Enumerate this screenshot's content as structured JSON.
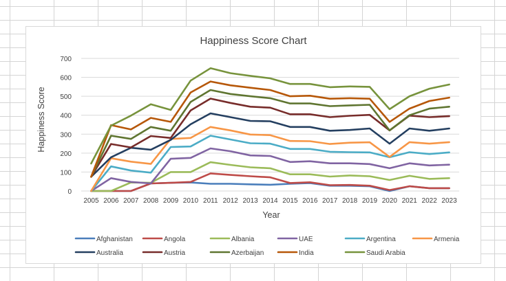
{
  "chart_data": {
    "type": "line",
    "title": "Happiness Score Chart",
    "xlabel": "Year",
    "ylabel": "Happiness Score",
    "ylim": [
      0,
      700
    ],
    "yticks": [
      0,
      100,
      200,
      300,
      400,
      500,
      600,
      700
    ],
    "categories": [
      "2005",
      "2006",
      "2007",
      "2008",
      "2009",
      "2010",
      "2011",
      "2012",
      "2013",
      "2014",
      "2015",
      "2016",
      "2017",
      "2018",
      "2019",
      "2020",
      "2021",
      "2022",
      "2023"
    ],
    "grid": true,
    "legend_position": "bottom",
    "series": [
      {
        "name": "Afghanistan",
        "color": "#4a7ebb",
        "values": [
          0,
          0,
          0,
          40,
          43,
          45,
          38,
          38,
          35,
          33,
          38,
          42,
          28,
          28,
          25,
          0,
          25,
          15,
          15
        ]
      },
      {
        "name": "Angola",
        "color": "#be4b48",
        "values": [
          0,
          0,
          0,
          40,
          43,
          48,
          93,
          85,
          78,
          72,
          42,
          46,
          31,
          32,
          28,
          5,
          25,
          15,
          15
        ]
      },
      {
        "name": "Albania",
        "color": "#9bbb59",
        "values": [
          0,
          0,
          45,
          43,
          100,
          100,
          152,
          138,
          125,
          120,
          88,
          88,
          76,
          82,
          78,
          58,
          80,
          64,
          68
        ]
      },
      {
        "name": "UAE",
        "color": "#8064a2",
        "values": [
          0,
          68,
          48,
          40,
          170,
          175,
          225,
          210,
          188,
          185,
          153,
          157,
          146,
          146,
          142,
          120,
          146,
          135,
          139
        ]
      },
      {
        "name": "Argentina",
        "color": "#4bacc6",
        "values": [
          0,
          130,
          108,
          97,
          232,
          235,
          292,
          272,
          252,
          250,
          222,
          222,
          207,
          205,
          204,
          178,
          205,
          195,
          204
        ]
      },
      {
        "name": "Armenia",
        "color": "#f79646",
        "values": [
          0,
          173,
          155,
          143,
          275,
          280,
          338,
          320,
          298,
          295,
          264,
          263,
          248,
          255,
          257,
          180,
          258,
          250,
          258
        ]
      },
      {
        "name": "Australia",
        "color": "#243f60",
        "values": [
          75,
          178,
          228,
          218,
          270,
          352,
          410,
          390,
          370,
          368,
          338,
          338,
          318,
          322,
          330,
          250,
          330,
          318,
          330
        ]
      },
      {
        "name": "Austria",
        "color": "#772c2a",
        "values": [
          75,
          248,
          230,
          290,
          280,
          425,
          488,
          465,
          445,
          440,
          405,
          405,
          390,
          397,
          402,
          320,
          398,
          390,
          395
        ]
      },
      {
        "name": "Azerbaijan",
        "color": "#5f7530",
        "values": [
          75,
          292,
          275,
          338,
          318,
          470,
          533,
          512,
          500,
          490,
          462,
          462,
          448,
          452,
          455,
          320,
          400,
          435,
          445
        ]
      },
      {
        "name": "India",
        "color": "#b65708",
        "values": [
          75,
          348,
          325,
          386,
          365,
          520,
          578,
          558,
          545,
          533,
          500,
          503,
          487,
          490,
          487,
          365,
          435,
          475,
          493
        ]
      },
      {
        "name": "Saudi Arabia",
        "color": "#77933c",
        "values": [
          145,
          345,
          398,
          458,
          428,
          583,
          648,
          622,
          608,
          595,
          565,
          565,
          548,
          552,
          550,
          432,
          500,
          540,
          562
        ]
      }
    ]
  }
}
